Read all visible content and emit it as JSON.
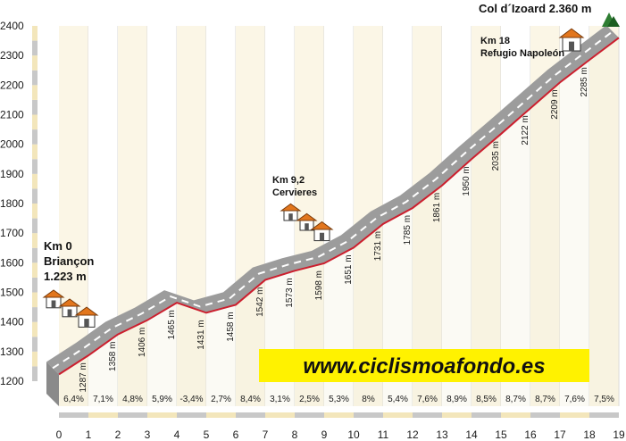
{
  "chart_data": {
    "type": "area",
    "title": "",
    "xlabel": "",
    "ylabel": "",
    "xlim": [
      0,
      19
    ],
    "ylim": [
      1200,
      2400
    ],
    "x_ticks": [
      "0",
      "1",
      "2",
      "3",
      "4",
      "5",
      "6",
      "7",
      "8",
      "9",
      "10",
      "11",
      "12",
      "13",
      "14",
      "15",
      "16",
      "17",
      "18",
      "19"
    ],
    "y_ticks": [
      "1200",
      "1300",
      "1400",
      "1500",
      "1600",
      "1700",
      "1800",
      "1900",
      "2000",
      "2100",
      "2200",
      "2300",
      "2400"
    ],
    "series": [
      {
        "x": [
          0,
          1,
          2,
          3,
          4,
          5,
          6,
          7,
          8,
          9,
          10,
          11,
          12,
          13,
          14,
          15,
          16,
          17,
          18,
          19
        ],
        "y": [
          1223,
          1287,
          1358,
          1406,
          1465,
          1431,
          1458,
          1542,
          1573,
          1598,
          1651,
          1731,
          1785,
          1861,
          1950,
          2035,
          2122,
          2209,
          2285,
          2360
        ]
      }
    ],
    "elevation_labels": [
      "1287 m",
      "1358 m",
      "1406 m",
      "1465 m",
      "1431 m",
      "1458 m",
      "1542 m",
      "1573 m",
      "1598 m",
      "1651 m",
      "1731 m",
      "1785 m",
      "1861 m",
      "1950 m",
      "2035 m",
      "2122 m",
      "2209 m",
      "2285 m"
    ],
    "gradients": [
      "6,4%",
      "7,1%",
      "4,8%",
      "5,9%",
      "-3,4%",
      "2,7%",
      "8,4%",
      "3,1%",
      "2,5%",
      "5,3%",
      "8%",
      "5,4%",
      "7,6%",
      "8,9%",
      "8,5%",
      "8,7%",
      "8,7%",
      "7,6%",
      "7,5%"
    ],
    "annotations": {
      "start": {
        "line1": "Km 0",
        "line2": "Briançon",
        "line3": "1.223 m"
      },
      "mid": {
        "line1": "Km 9,2",
        "line2": "Cervieres"
      },
      "refugio": {
        "line1": "Km 18",
        "line2": "Refugio Napoleón"
      },
      "summit": "Col d´Izoard 2.360 m"
    },
    "website": "www.ciclismoafondo.es",
    "colors": {
      "stripe_light": "#f3e6bb",
      "stripe_grey": "#c8c8c8",
      "road": "#9c9c9c",
      "profile_line": "#cc1f2e",
      "website_bg": "#fff200",
      "house_roof": "#e2761d",
      "summit_icon": "#2e7d32"
    },
    "grid": true,
    "legend": "none"
  }
}
